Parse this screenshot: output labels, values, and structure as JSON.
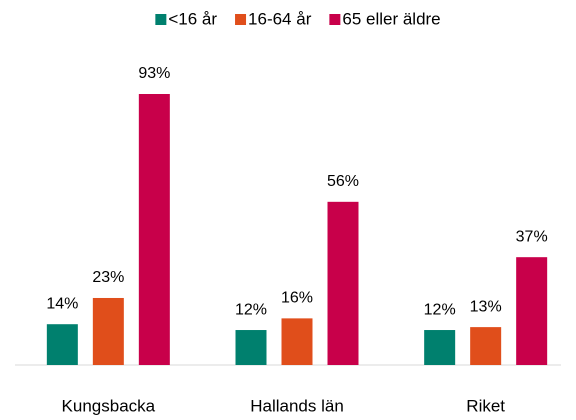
{
  "chart_data": {
    "type": "bar",
    "categories": [
      "Kungsbacka",
      "Hallands län",
      "Riket"
    ],
    "series": [
      {
        "name": "<16 år",
        "color": "#00806e",
        "values": [
          14,
          12,
          12
        ],
        "value_labels": [
          "14%",
          "12%",
          "12%"
        ]
      },
      {
        "name": "16-64 år",
        "color": "#e04e1b",
        "values": [
          23,
          16,
          13
        ],
        "value_labels": [
          "23%",
          "16%",
          "13%"
        ]
      },
      {
        "name": "65 eller äldre",
        "color": "#c8004a",
        "values": [
          93,
          56,
          37
        ],
        "value_labels": [
          "93%",
          "56%",
          "37%"
        ]
      }
    ],
    "legend": "top"
  }
}
